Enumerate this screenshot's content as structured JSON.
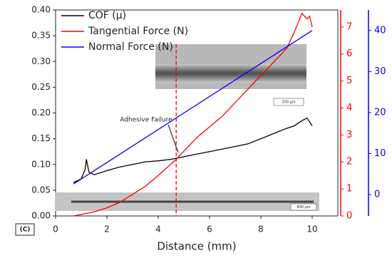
{
  "chart_data": {
    "type": "line",
    "x_label": "Distance (mm)",
    "panel_label": "(C)",
    "xlim": [
      0,
      11
    ],
    "xticks": [
      0,
      2,
      4,
      6,
      8,
      10
    ],
    "ylim": [
      0,
      0.4
    ],
    "yticks": [
      {
        "value": 0,
        "label": "0.00"
      },
      {
        "value": 0.05,
        "label": "0.05"
      },
      {
        "value": 0.1,
        "label": "0.10"
      },
      {
        "value": 0.15,
        "label": "0.15"
      },
      {
        "value": 0.2,
        "label": "0.20"
      },
      {
        "value": 0.25,
        "label": "0.25"
      },
      {
        "value": 0.3,
        "label": "0.30"
      },
      {
        "value": 0.35,
        "label": "0.35"
      },
      {
        "value": 0.4,
        "label": "0.40"
      }
    ],
    "y2lim": [
      0,
      7.63
    ],
    "y2ticks": [
      0,
      1,
      2,
      3,
      4,
      5,
      6,
      7
    ],
    "y2color": "#ff0000",
    "y3lim": [
      -5.2,
      45
    ],
    "y3ticks": [
      0,
      10,
      20,
      30,
      40
    ],
    "y3color": "#0000ff",
    "legend": "upper left",
    "series": [
      {
        "name": "COF (μ)",
        "color": "#000000",
        "x": [
          0.7,
          1.0,
          1.15,
          1.2,
          1.3,
          1.5,
          2.0,
          2.5,
          3.0,
          3.5,
          4.0,
          4.5,
          5.0,
          5.5,
          6.0,
          6.5,
          7.0,
          7.5,
          8.0,
          8.5,
          9.0,
          9.3,
          9.6,
          9.8,
          10.0
        ],
        "values": [
          0.065,
          0.072,
          0.09,
          0.11,
          0.085,
          0.08,
          0.088,
          0.095,
          0.1,
          0.105,
          0.107,
          0.11,
          0.115,
          0.12,
          0.125,
          0.13,
          0.135,
          0.14,
          0.15,
          0.16,
          0.17,
          0.175,
          0.185,
          0.19,
          0.175
        ]
      },
      {
        "name": "Tangential Force (N)",
        "color": "#ff0000",
        "axis": "y2",
        "x": [
          0.7,
          1.5,
          2.0,
          2.5,
          3.0,
          3.5,
          4.0,
          4.7,
          5.0,
          5.5,
          6.0,
          6.5,
          7.0,
          7.5,
          8.0,
          8.5,
          9.0,
          9.3,
          9.6,
          9.8,
          9.9,
          10.0
        ],
        "values": [
          0,
          0.15,
          0.3,
          0.5,
          0.8,
          1.1,
          1.5,
          2.1,
          2.4,
          2.9,
          3.3,
          3.7,
          4.2,
          4.7,
          5.2,
          5.7,
          6.2,
          6.8,
          7.5,
          7.3,
          7.4,
          7.0
        ]
      },
      {
        "name": "Normal Force (N)",
        "color": "#0000ff",
        "axis": "y3",
        "x": [
          0.7,
          10.0
        ],
        "values": [
          2.6,
          40
        ]
      }
    ],
    "annotations": [
      {
        "text": "Adhesive Failure"
      },
      {
        "text": "200 µm"
      },
      {
        "text": "800 µm"
      }
    ],
    "failure_x": 4.7
  }
}
